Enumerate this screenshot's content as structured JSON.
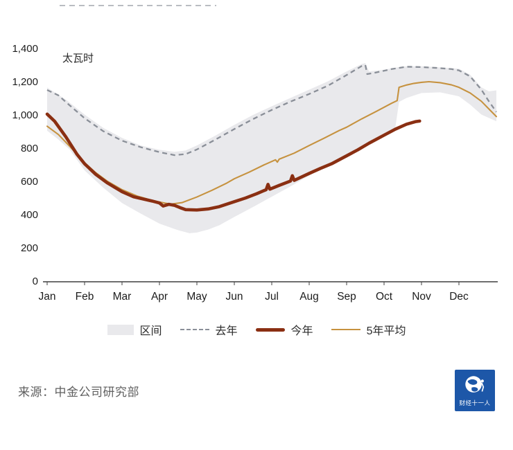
{
  "footer": {
    "source": "来源：中金公司研究部",
    "logo_text": "财经十一人"
  },
  "chart_data": {
    "type": "line",
    "title": "",
    "unit_label": "太瓦时",
    "ylim": [
      0,
      1400
    ],
    "grid": false,
    "legend_position": "bottom",
    "y_ticks": [
      {
        "v": 0,
        "label": "0"
      },
      {
        "v": 200,
        "label": "200"
      },
      {
        "v": 400,
        "label": "400"
      },
      {
        "v": 600,
        "label": "600"
      },
      {
        "v": 800,
        "label": "800"
      },
      {
        "v": 1000,
        "label": "1,000"
      },
      {
        "v": 1200,
        "label": "1,200"
      },
      {
        "v": 1400,
        "label": "1,400"
      }
    ],
    "x_ticks": [
      "Jan",
      "Feb",
      "Mar",
      "Apr",
      "May",
      "Jun",
      "Jul",
      "Aug",
      "Sep",
      "Oct",
      "Nov",
      "Dec"
    ],
    "band": {
      "name": "区间",
      "color": "#e9e9ec",
      "upper": [
        [
          0,
          1165
        ],
        [
          0.5,
          1092
        ],
        [
          1,
          1002
        ],
        [
          1.5,
          922
        ],
        [
          2,
          862
        ],
        [
          2.5,
          816
        ],
        [
          3,
          790
        ],
        [
          3.4,
          778
        ],
        [
          3.7,
          786
        ],
        [
          4,
          816
        ],
        [
          4.5,
          876
        ],
        [
          5,
          940
        ],
        [
          5.5,
          1000
        ],
        [
          6,
          1052
        ],
        [
          6.5,
          1102
        ],
        [
          7,
          1152
        ],
        [
          7.5,
          1202
        ],
        [
          8,
          1262
        ],
        [
          8.4,
          1306
        ],
        [
          8.5,
          1312
        ],
        [
          8.6,
          1262
        ],
        [
          9,
          1272
        ],
        [
          9.5,
          1292
        ],
        [
          10,
          1293
        ],
        [
          10.5,
          1286
        ],
        [
          11,
          1278
        ],
        [
          11.3,
          1242
        ],
        [
          11.6,
          1166
        ],
        [
          11.8,
          1142
        ],
        [
          12,
          1148
        ]
      ],
      "lower": [
        [
          0,
          905
        ],
        [
          0.3,
          852
        ],
        [
          0.6,
          792
        ],
        [
          1,
          666
        ],
        [
          1.5,
          562
        ],
        [
          2,
          470
        ],
        [
          2.5,
          406
        ],
        [
          3,
          346
        ],
        [
          3.5,
          306
        ],
        [
          3.8,
          288
        ],
        [
          4,
          292
        ],
        [
          4.3,
          310
        ],
        [
          4.6,
          336
        ],
        [
          5,
          386
        ],
        [
          5.5,
          446
        ],
        [
          6,
          508
        ],
        [
          6.5,
          570
        ],
        [
          7,
          635
        ],
        [
          7.5,
          700
        ],
        [
          8,
          742
        ],
        [
          8.5,
          812
        ],
        [
          9,
          882
        ],
        [
          9.3,
          922
        ],
        [
          9.4,
          1078
        ],
        [
          9.6,
          1102
        ],
        [
          10,
          1132
        ],
        [
          10.5,
          1136
        ],
        [
          11,
          1112
        ],
        [
          11.3,
          1062
        ],
        [
          11.6,
          1002
        ],
        [
          12,
          962
        ]
      ]
    },
    "series": [
      {
        "name": "去年",
        "style": "dashed",
        "color": "#8a8f98",
        "width": 2.3,
        "z": 1,
        "points": [
          [
            0,
            1150
          ],
          [
            0.3,
            1118
          ],
          [
            0.6,
            1058
          ],
          [
            1,
            980
          ],
          [
            1.5,
            902
          ],
          [
            2,
            845
          ],
          [
            2.5,
            806
          ],
          [
            3,
            776
          ],
          [
            3.4,
            758
          ],
          [
            3.7,
            764
          ],
          [
            4,
            792
          ],
          [
            4.5,
            852
          ],
          [
            5,
            915
          ],
          [
            5.5,
            975
          ],
          [
            6,
            1030
          ],
          [
            6.5,
            1080
          ],
          [
            7,
            1126
          ],
          [
            7.5,
            1176
          ],
          [
            8,
            1240
          ],
          [
            8.4,
            1294
          ],
          [
            8.5,
            1300
          ],
          [
            8.55,
            1246
          ],
          [
            8.8,
            1256
          ],
          [
            9.2,
            1276
          ],
          [
            9.6,
            1290
          ],
          [
            10,
            1288
          ],
          [
            10.4,
            1283
          ],
          [
            10.8,
            1276
          ],
          [
            11,
            1268
          ],
          [
            11.3,
            1232
          ],
          [
            11.6,
            1152
          ],
          [
            11.8,
            1082
          ],
          [
            12,
            1018
          ]
        ]
      },
      {
        "name": "今年",
        "style": "solid",
        "color": "#8a2f12",
        "width": 4.6,
        "z": 3,
        "points": [
          [
            0,
            1005
          ],
          [
            0.2,
            962
          ],
          [
            0.5,
            868
          ],
          [
            0.8,
            762
          ],
          [
            1,
            706
          ],
          [
            1.3,
            642
          ],
          [
            1.6,
            592
          ],
          [
            2,
            538
          ],
          [
            2.3,
            508
          ],
          [
            2.6,
            492
          ],
          [
            2.8,
            482
          ],
          [
            3,
            470
          ],
          [
            3.1,
            452
          ],
          [
            3.25,
            462
          ],
          [
            3.4,
            456
          ],
          [
            3.55,
            442
          ],
          [
            3.7,
            430
          ],
          [
            4,
            428
          ],
          [
            4.3,
            434
          ],
          [
            4.6,
            448
          ],
          [
            5,
            478
          ],
          [
            5.3,
            500
          ],
          [
            5.6,
            526
          ],
          [
            5.85,
            550
          ],
          [
            5.9,
            582
          ],
          [
            5.95,
            553
          ],
          [
            6.2,
            576
          ],
          [
            6.5,
            602
          ],
          [
            6.55,
            634
          ],
          [
            6.6,
            606
          ],
          [
            7,
            648
          ],
          [
            7.3,
            678
          ],
          [
            7.6,
            706
          ],
          [
            8,
            754
          ],
          [
            8.3,
            790
          ],
          [
            8.6,
            830
          ],
          [
            9,
            878
          ],
          [
            9.3,
            914
          ],
          [
            9.6,
            944
          ],
          [
            9.85,
            960
          ],
          [
            9.95,
            963
          ]
        ]
      },
      {
        "name": "5年平均",
        "style": "solid",
        "color": "#c6923f",
        "width": 2.1,
        "z": 2,
        "points": [
          [
            0,
            932
          ],
          [
            0.3,
            882
          ],
          [
            0.6,
            812
          ],
          [
            1,
            712
          ],
          [
            1.3,
            652
          ],
          [
            1.6,
            602
          ],
          [
            2,
            550
          ],
          [
            2.4,
            512
          ],
          [
            2.8,
            486
          ],
          [
            3,
            476
          ],
          [
            3.3,
            463
          ],
          [
            3.6,
            472
          ],
          [
            4,
            506
          ],
          [
            4.4,
            546
          ],
          [
            4.8,
            590
          ],
          [
            5,
            616
          ],
          [
            5.4,
            656
          ],
          [
            5.8,
            700
          ],
          [
            6.1,
            730
          ],
          [
            6.15,
            716
          ],
          [
            6.2,
            734
          ],
          [
            6.6,
            770
          ],
          [
            7,
            816
          ],
          [
            7.4,
            860
          ],
          [
            7.8,
            906
          ],
          [
            8,
            926
          ],
          [
            8.4,
            976
          ],
          [
            8.8,
            1022
          ],
          [
            9,
            1046
          ],
          [
            9.2,
            1070
          ],
          [
            9.35,
            1086
          ],
          [
            9.4,
            1166
          ],
          [
            9.6,
            1180
          ],
          [
            9.8,
            1190
          ],
          [
            10,
            1196
          ],
          [
            10.2,
            1200
          ],
          [
            10.5,
            1194
          ],
          [
            10.8,
            1181
          ],
          [
            11,
            1166
          ],
          [
            11.3,
            1132
          ],
          [
            11.6,
            1082
          ],
          [
            11.8,
            1036
          ],
          [
            12,
            990
          ]
        ]
      }
    ]
  }
}
